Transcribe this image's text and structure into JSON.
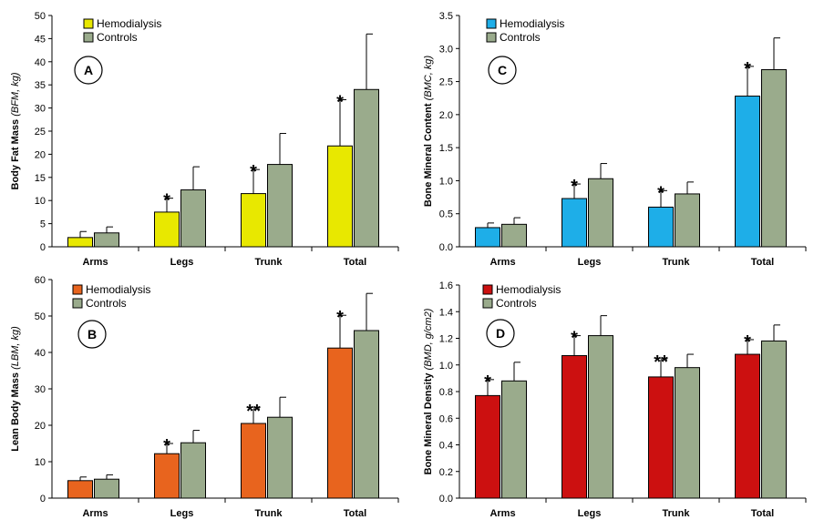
{
  "chart_data": [
    {
      "type": "bar",
      "panel_label": "A",
      "ylabel": "Body Fat Mass",
      "ylabel_unit": "(BFM, kg)",
      "ylim": [
        0,
        50
      ],
      "yticks": [
        "0",
        "5",
        "10",
        "15",
        "20",
        "25",
        "30",
        "35",
        "40",
        "45",
        "50"
      ],
      "categories": [
        "Arms",
        "Legs",
        "Trunk",
        "Total"
      ],
      "legend_position": "top-left",
      "series": [
        {
          "name": "Hemodialysis",
          "color": "#e8e800",
          "values": [
            2.0,
            7.5,
            11.5,
            21.8
          ],
          "errors": [
            1.3,
            3.0,
            5.2,
            10.0
          ],
          "markers": [
            "",
            "*",
            "*",
            "*"
          ]
        },
        {
          "name": "Controls",
          "color": "#9aab8c",
          "values": [
            3.0,
            12.3,
            17.8,
            34.0
          ],
          "errors": [
            1.3,
            5.0,
            6.7,
            12.0
          ],
          "markers": [
            "",
            "",
            "",
            ""
          ]
        }
      ]
    },
    {
      "type": "bar",
      "panel_label": "B",
      "ylabel": "Lean Body Mass",
      "ylabel_unit": "(LBM, kg)",
      "ylim": [
        0,
        60
      ],
      "yticks": [
        "0",
        "10",
        "20",
        "30",
        "40",
        "50",
        "60"
      ],
      "categories": [
        "Arms",
        "Legs",
        "Trunk",
        "Total"
      ],
      "legend_position": "top-left",
      "series": [
        {
          "name": "Hemodialysis",
          "color": "#e8641e",
          "values": [
            4.8,
            12.2,
            20.5,
            41.2
          ],
          "errors": [
            1.0,
            2.8,
            4.0,
            9.0
          ],
          "markers": [
            "",
            "*",
            "**",
            "*"
          ]
        },
        {
          "name": "Controls",
          "color": "#9aab8c",
          "values": [
            5.2,
            15.2,
            22.2,
            46.0
          ],
          "errors": [
            1.2,
            3.4,
            5.5,
            10.2
          ],
          "markers": [
            "",
            "",
            "",
            ""
          ]
        }
      ]
    },
    {
      "type": "bar",
      "panel_label": "C",
      "ylabel": "Bone Mineral Content",
      "ylabel_unit": "(BMC, kg)",
      "ylim": [
        0,
        3.5
      ],
      "yticks": [
        "0.0",
        "0.5",
        "1.0",
        "1.5",
        "2.0",
        "2.5",
        "3.0",
        "3.5"
      ],
      "categories": [
        "Arms",
        "Legs",
        "Trunk",
        "Total"
      ],
      "legend_position": "top-left",
      "series": [
        {
          "name": "Hemodialysis",
          "color": "#1eaee8",
          "values": [
            0.29,
            0.73,
            0.6,
            2.28
          ],
          "errors": [
            0.07,
            0.22,
            0.25,
            0.45
          ],
          "markers": [
            "",
            "*",
            "*",
            "*"
          ]
        },
        {
          "name": "Controls",
          "color": "#9aab8c",
          "values": [
            0.34,
            1.03,
            0.8,
            2.68
          ],
          "errors": [
            0.1,
            0.23,
            0.18,
            0.48
          ],
          "markers": [
            "",
            "",
            "",
            ""
          ]
        }
      ]
    },
    {
      "type": "bar",
      "panel_label": "D",
      "ylabel": "Bone Mineral Density",
      "ylabel_unit": "(BMD, g/cm2)",
      "ylim": [
        0,
        1.6
      ],
      "yticks": [
        "0.0",
        "0.2",
        "0.4",
        "0.6",
        "0.8",
        "1.0",
        "1.2",
        "1.4",
        "1.6"
      ],
      "categories": [
        "Arms",
        "Legs",
        "Trunk",
        "Total"
      ],
      "legend_position": "top-left",
      "series": [
        {
          "name": "Hemodialysis",
          "color": "#cc1010",
          "values": [
            0.77,
            1.07,
            0.91,
            1.08
          ],
          "errors": [
            0.12,
            0.15,
            0.13,
            0.11
          ],
          "markers": [
            "*",
            "*",
            "**",
            "*"
          ]
        },
        {
          "name": "Controls",
          "color": "#9aab8c",
          "values": [
            0.88,
            1.22,
            0.98,
            1.18
          ],
          "errors": [
            0.14,
            0.15,
            0.1,
            0.12
          ],
          "markers": [
            "",
            "",
            "",
            ""
          ]
        }
      ]
    }
  ]
}
